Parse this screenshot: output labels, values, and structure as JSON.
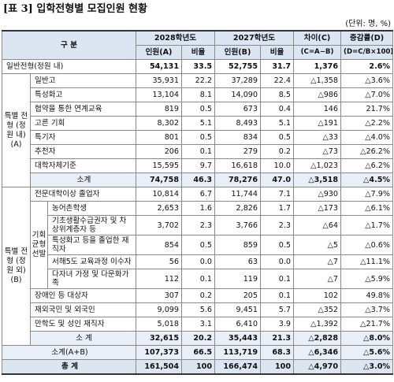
{
  "header": {
    "title": "[표 3] 입학전형별 모집인원 현황",
    "unit": "(단위: 명, %)",
    "category": "구 분",
    "year1": "2028학년도",
    "year2": "2027학년도",
    "diff": "차이(C)",
    "rate": "증감률(D)",
    "count_a": "인원(A)",
    "ratio_a": "비율",
    "count_b": "인원(B)",
    "ratio_b": "비율",
    "diff_formula": "(C=A−B)",
    "rate_formula": "(D=C/B×100)"
  },
  "table": {
    "general": {
      "label": "일반전형(정원 내)",
      "cells": [
        "54,131",
        "33.5",
        "52,755",
        "31.7",
        "1,376",
        "2.6%"
      ]
    },
    "special_in": {
      "label": "특별 전형 (정원 내) (A)",
      "rows": [
        {
          "label": "일반고",
          "cells": [
            "35,931",
            "22.2",
            "37,289",
            "22.4",
            "△1,358",
            "△3.6%"
          ]
        },
        {
          "label": "특성화고",
          "cells": [
            "13,104",
            "8.1",
            "14,090",
            "8.5",
            "△986",
            "△7.0%"
          ]
        },
        {
          "label": "협약을 통한 연계교육",
          "cells": [
            "819",
            "0.5",
            "673",
            "0.4",
            "146",
            "21.7%"
          ]
        },
        {
          "label": "고른 기회",
          "cells": [
            "8,302",
            "5.1",
            "8,493",
            "5.1",
            "△191",
            "△2.2%"
          ]
        },
        {
          "label": "특기자",
          "cells": [
            "801",
            "0.5",
            "834",
            "0.5",
            "△33",
            "△4.0%"
          ]
        },
        {
          "label": "추천자",
          "cells": [
            "206",
            "0.1",
            "279",
            "0.2",
            "△73",
            "△26.2%"
          ]
        },
        {
          "label": "대학자체기준",
          "cells": [
            "15,595",
            "9.7",
            "16,618",
            "10.0",
            "△1,023",
            "△6.2%"
          ]
        }
      ],
      "subtotal": {
        "label": "소계",
        "cells": [
          "74,758",
          "46.3",
          "78,276",
          "47.0",
          "△3,518",
          "△4.5%"
        ]
      }
    },
    "special_out": {
      "label": "특별 전형 (정원 외) (B)",
      "rows": [
        {
          "label": "전문대학이상 졸업자",
          "cells": [
            "10,814",
            "6.7",
            "11,744",
            "7.1",
            "△930",
            "△7.9%"
          ]
        },
        {
          "label": "기회 균형 선발",
          "rows": [
            {
              "label": "농어촌학생",
              "cells": [
                "2,653",
                "1.6",
                "2,826",
                "1.7",
                "△173",
                "△6.1%"
              ]
            },
            {
              "label": "기초생활수급권자 및 차상위계층자 등",
              "cells": [
                "3,702",
                "2.3",
                "3,766",
                "2.3",
                "△64",
                "△1.7%"
              ]
            },
            {
              "label": "특성화고 등을 졸업한 재직자",
              "cells": [
                "854",
                "0.5",
                "859",
                "0.5",
                "△5",
                "△0.6%"
              ]
            },
            {
              "label": "서해5도 교육과정 이수자",
              "cells": [
                "56",
                "0.0",
                "63",
                "0.0",
                "△7",
                "△11.1%"
              ]
            },
            {
              "label": "다자녀 가정 및 다문화가족",
              "cells": [
                "112",
                "0.1",
                "119",
                "0.1",
                "△7",
                "△5.9%"
              ]
            }
          ]
        },
        {
          "label": "장애인 등 대상자",
          "cells": [
            "307",
            "0.2",
            "205",
            "0.1",
            "102",
            "49.8%"
          ]
        },
        {
          "label": "재외국민 및 외국인",
          "cells": [
            "9,099",
            "5.6",
            "9,451",
            "5.7",
            "△352",
            "△3.7%"
          ]
        },
        {
          "label": "만학도 및 성인 재직자",
          "cells": [
            "5,018",
            "3.1",
            "6,410",
            "3.9",
            "△1,392",
            "△21.7%"
          ]
        }
      ],
      "subtotal": {
        "label": "소 계",
        "cells": [
          "32,615",
          "20.2",
          "35,443",
          "21.3",
          "△2,828",
          "△8.0%"
        ]
      }
    },
    "subtotal_ab": {
      "label": "소계(A+B)",
      "cells": [
        "107,373",
        "66.5",
        "113,719",
        "68.3",
        "△6,346",
        "△5.6%"
      ]
    },
    "total": {
      "label": "총 계",
      "cells": [
        "161,504",
        "100",
        "166,474",
        "100",
        "△4,970",
        "△3.0%"
      ]
    }
  }
}
